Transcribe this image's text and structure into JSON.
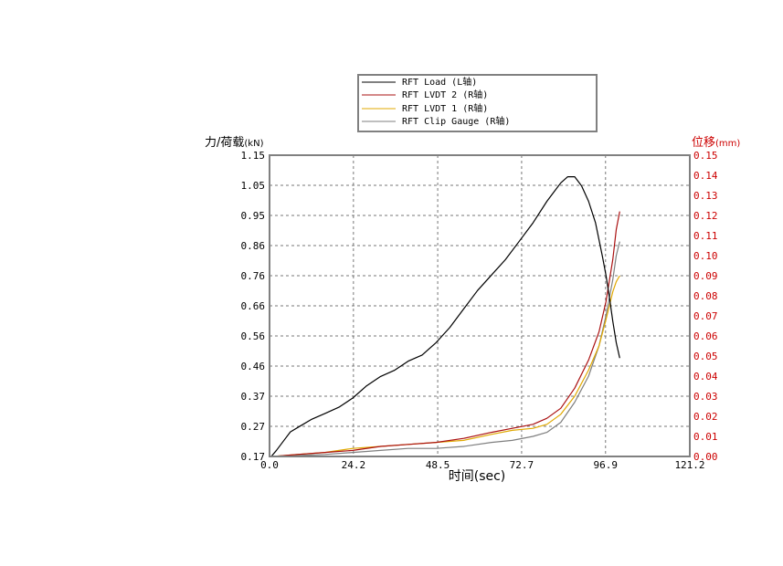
{
  "chart_data": {
    "type": "line",
    "xlabel": "时间(sec)",
    "ylabel_left": "力/荷载",
    "ylabel_left_unit": "(kN)",
    "ylabel_right": "位移",
    "ylabel_right_unit": "(mm)",
    "xlim": [
      0.0,
      121.2
    ],
    "ylim_left": [
      0.17,
      1.15
    ],
    "ylim_right": [
      0.0,
      0.15
    ],
    "x_ticks": [
      "0.0",
      "24.2",
      "48.5",
      "72.7",
      "96.9",
      "121.2"
    ],
    "y_left_ticks": [
      "0.17",
      "0.27",
      "0.37",
      "0.46",
      "0.56",
      "0.66",
      "0.76",
      "0.86",
      "0.95",
      "1.05",
      "1.15"
    ],
    "y_right_ticks": [
      "0.00",
      "0.01",
      "0.02",
      "0.03",
      "0.04",
      "0.05",
      "0.06",
      "0.07",
      "0.08",
      "0.09",
      "0.10",
      "0.11",
      "0.12",
      "0.13",
      "0.14",
      "0.15"
    ],
    "grid": true,
    "legend_position": "top-center",
    "colors": {
      "left_axis": "#000000",
      "right_axis": "#cc0000"
    },
    "series": [
      {
        "name": "RFT Load (L轴)",
        "axis": "left",
        "color": "#000000",
        "x": [
          0.5,
          2,
          4,
          6,
          9,
          12,
          16,
          20,
          24,
          28,
          32,
          36,
          40,
          44,
          48,
          52,
          56,
          60,
          64,
          68,
          72,
          76,
          80,
          82,
          84,
          86,
          88,
          90,
          92,
          94,
          96,
          97,
          98,
          99,
          100,
          101
        ],
        "y": [
          0.17,
          0.19,
          0.22,
          0.25,
          0.27,
          0.29,
          0.31,
          0.33,
          0.36,
          0.4,
          0.43,
          0.45,
          0.48,
          0.5,
          0.54,
          0.59,
          0.65,
          0.71,
          0.76,
          0.81,
          0.87,
          0.93,
          1.0,
          1.03,
          1.06,
          1.08,
          1.08,
          1.05,
          1.0,
          0.93,
          0.82,
          0.76,
          0.69,
          0.61,
          0.54,
          0.49
        ]
      },
      {
        "name": "RFT LVDT 2 (R轴)",
        "axis": "right",
        "color": "#aa1111",
        "x": [
          1,
          8,
          16,
          24,
          32,
          40,
          48,
          56,
          64,
          70,
          76,
          80,
          84,
          88,
          92,
          95,
          97,
          99,
          100,
          101
        ],
        "y": [
          0.0,
          0.001,
          0.002,
          0.003,
          0.005,
          0.006,
          0.007,
          0.009,
          0.012,
          0.014,
          0.016,
          0.019,
          0.024,
          0.034,
          0.048,
          0.062,
          0.077,
          0.098,
          0.113,
          0.122
        ]
      },
      {
        "name": "RFT LVDT 1 (R轴)",
        "axis": "right",
        "color": "#e0a800",
        "x": [
          1,
          8,
          16,
          24,
          32,
          40,
          48,
          56,
          64,
          70,
          76,
          80,
          84,
          88,
          92,
          95,
          97,
          99,
          100,
          101
        ],
        "y": [
          0.0,
          0.001,
          0.002,
          0.004,
          0.005,
          0.006,
          0.007,
          0.008,
          0.011,
          0.013,
          0.014,
          0.016,
          0.021,
          0.03,
          0.043,
          0.055,
          0.068,
          0.082,
          0.087,
          0.09
        ]
      },
      {
        "name": "RFT Clip Gauge (R轴)",
        "axis": "right",
        "color": "#7f7f7f",
        "x": [
          1,
          8,
          16,
          24,
          32,
          40,
          48,
          56,
          64,
          70,
          76,
          80,
          84,
          88,
          92,
          95,
          97,
          99,
          100,
          101
        ],
        "y": [
          0.0,
          0.0005,
          0.001,
          0.002,
          0.003,
          0.004,
          0.004,
          0.005,
          0.007,
          0.008,
          0.01,
          0.012,
          0.017,
          0.027,
          0.04,
          0.055,
          0.07,
          0.088,
          0.1,
          0.107
        ]
      }
    ]
  }
}
